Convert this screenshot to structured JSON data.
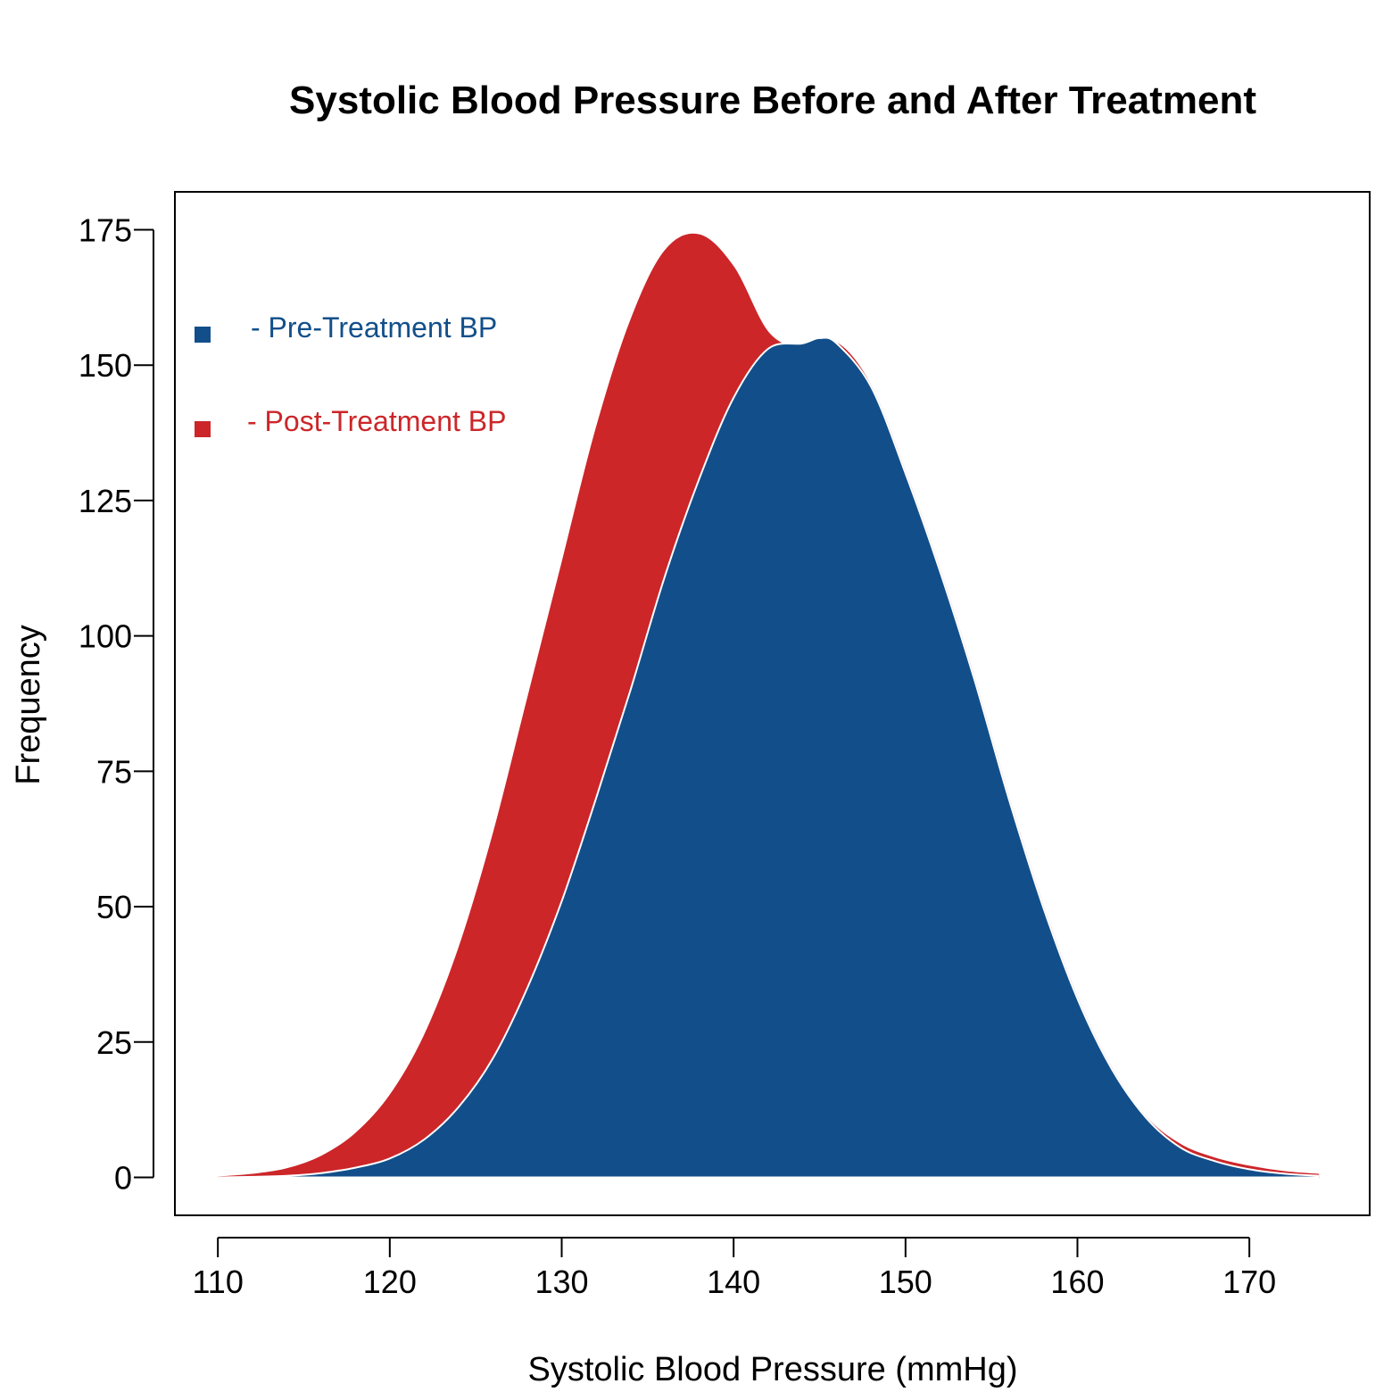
{
  "chart_data": {
    "type": "area",
    "title": "Systolic Blood Pressure Before and After Treatment",
    "xlabel": "Systolic Blood Pressure (mmHg)",
    "ylabel": "Frequency",
    "xlim": [
      107.5,
      177
    ],
    "ylim": [
      -7,
      182
    ],
    "x_ticks": [
      110,
      120,
      130,
      140,
      150,
      160,
      170
    ],
    "y_ticks": [
      0,
      25,
      50,
      75,
      100,
      125,
      150,
      175
    ],
    "grid": false,
    "legend_position": "top-left",
    "series": [
      {
        "name": "- Post-Treatment BP",
        "color": "#cc2629",
        "x": [
          110,
          112,
          114,
          116,
          118,
          120,
          122,
          124,
          126,
          128,
          130,
          132,
          134,
          136,
          138,
          140,
          142,
          144,
          146,
          148,
          150,
          152,
          154,
          156,
          158,
          160,
          162,
          164,
          166,
          168,
          170,
          172,
          174
        ],
        "values": [
          0,
          0.5,
          1.5,
          3.8,
          8,
          15,
          26,
          42,
          63,
          88,
          113,
          138,
          158,
          171,
          174,
          168,
          156,
          153,
          154,
          146,
          130,
          112,
          92,
          70,
          50,
          33,
          20,
          11,
          6,
          3.5,
          2,
          1,
          0.5
        ]
      },
      {
        "name": "- Pre-Treatment BP",
        "color": "#124f8a",
        "x": [
          110,
          112,
          114,
          116,
          118,
          120,
          122,
          124,
          126,
          128,
          130,
          132,
          134,
          136,
          138,
          140,
          142,
          144,
          145,
          146,
          148,
          150,
          152,
          154,
          156,
          158,
          160,
          162,
          164,
          166,
          168,
          170,
          172,
          174
        ],
        "values": [
          0,
          0.1,
          0.3,
          0.8,
          1.8,
          3.5,
          7,
          13,
          22,
          35,
          51,
          70,
          90,
          111,
          129,
          144,
          153,
          154,
          155,
          154,
          146,
          130,
          112,
          92,
          70,
          50,
          33,
          20,
          11,
          5.5,
          3,
          1.5,
          0.7,
          0.3
        ]
      }
    ]
  }
}
